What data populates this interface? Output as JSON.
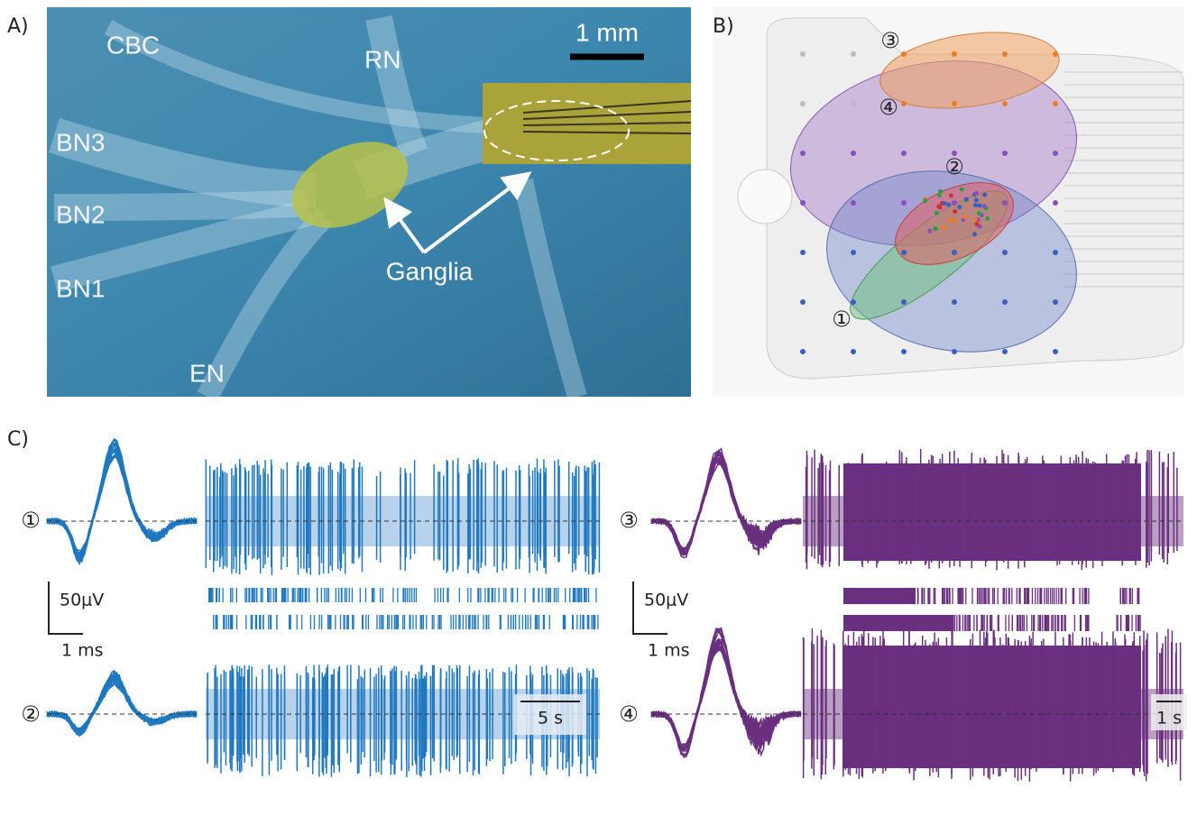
{
  "panels": {
    "a": {
      "label": "A)",
      "scale_bar": "1 mm",
      "nerves": [
        "CBC",
        "RN",
        "BN3",
        "BN2",
        "BN1",
        "EN"
      ],
      "annotation": "Ganglia"
    },
    "b": {
      "label": "B)",
      "units": [
        "③",
        "④",
        "②",
        "①"
      ]
    },
    "c": {
      "label": "C)",
      "units": [
        "①",
        "②",
        "③",
        "④"
      ],
      "left_scale": {
        "amplitude": "50μV",
        "time": "1 ms",
        "duration": "5 s"
      },
      "right_scale": {
        "amplitude": "50μV",
        "time": "1 ms",
        "duration": "1 s"
      }
    }
  }
}
